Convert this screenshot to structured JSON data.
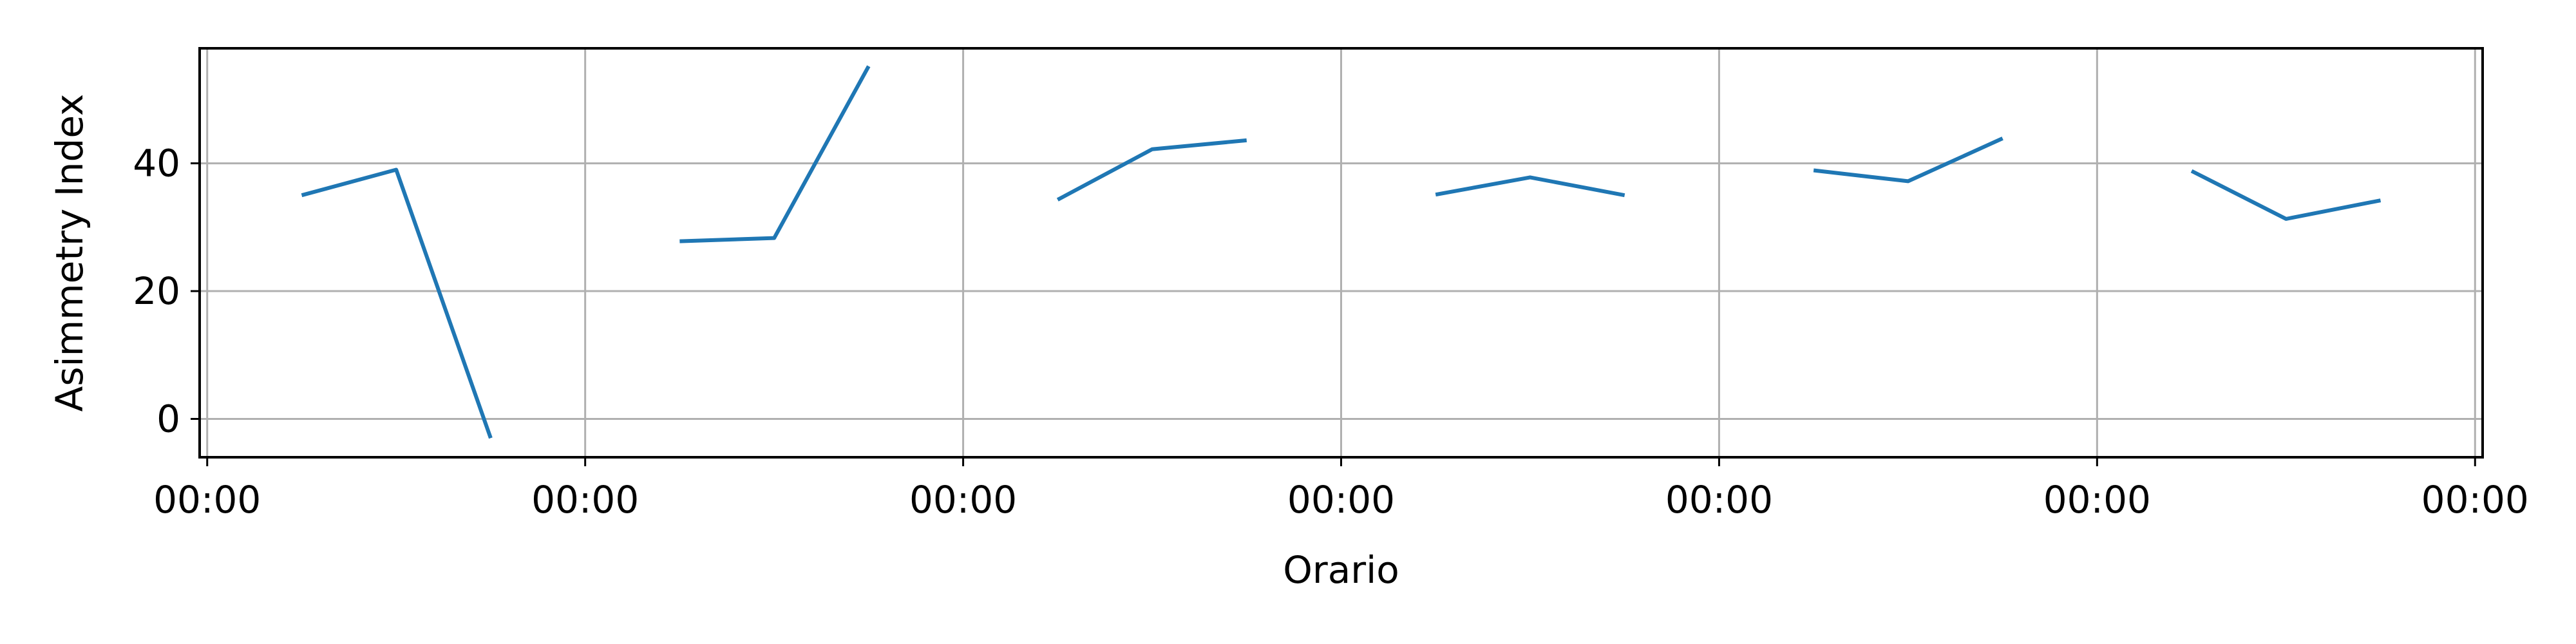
{
  "chart_data": {
    "type": "line",
    "xlabel": "Orario",
    "ylabel": "Asimmetry Index",
    "x_tick_labels": [
      "00:00",
      "00:00",
      "00:00",
      "00:00",
      "00:00",
      "00:00",
      "00:00"
    ],
    "y_ticks": [
      0,
      20,
      40
    ],
    "y_tick_labels": [
      "0",
      "20",
      "40"
    ],
    "ylim": [
      -6,
      58
    ],
    "xlim": [
      -0.02,
      6.02
    ],
    "grid": true,
    "legend": "none",
    "series": [
      {
        "segments": [
          {
            "x": [
              0.25,
              0.5,
              0.75
            ],
            "y": [
              35.0,
              39.0,
              -3.0
            ]
          },
          {
            "x": [
              1.25,
              1.5,
              1.75
            ],
            "y": [
              27.8,
              28.3,
              55.2
            ]
          },
          {
            "x": [
              2.25,
              2.5,
              2.75
            ],
            "y": [
              34.3,
              42.2,
              43.6
            ]
          },
          {
            "x": [
              3.25,
              3.5,
              3.75
            ],
            "y": [
              35.1,
              37.8,
              35.0
            ]
          },
          {
            "x": [
              4.25,
              4.5,
              4.75
            ],
            "y": [
              38.9,
              37.2,
              43.9
            ]
          },
          {
            "x": [
              5.25,
              5.5,
              5.75
            ],
            "y": [
              38.8,
              31.3,
              34.2
            ]
          }
        ]
      }
    ],
    "colors": {
      "line": "#1f77b4",
      "grid": "#b0b0b0",
      "axes": "#000000",
      "background": "#ffffff"
    }
  }
}
